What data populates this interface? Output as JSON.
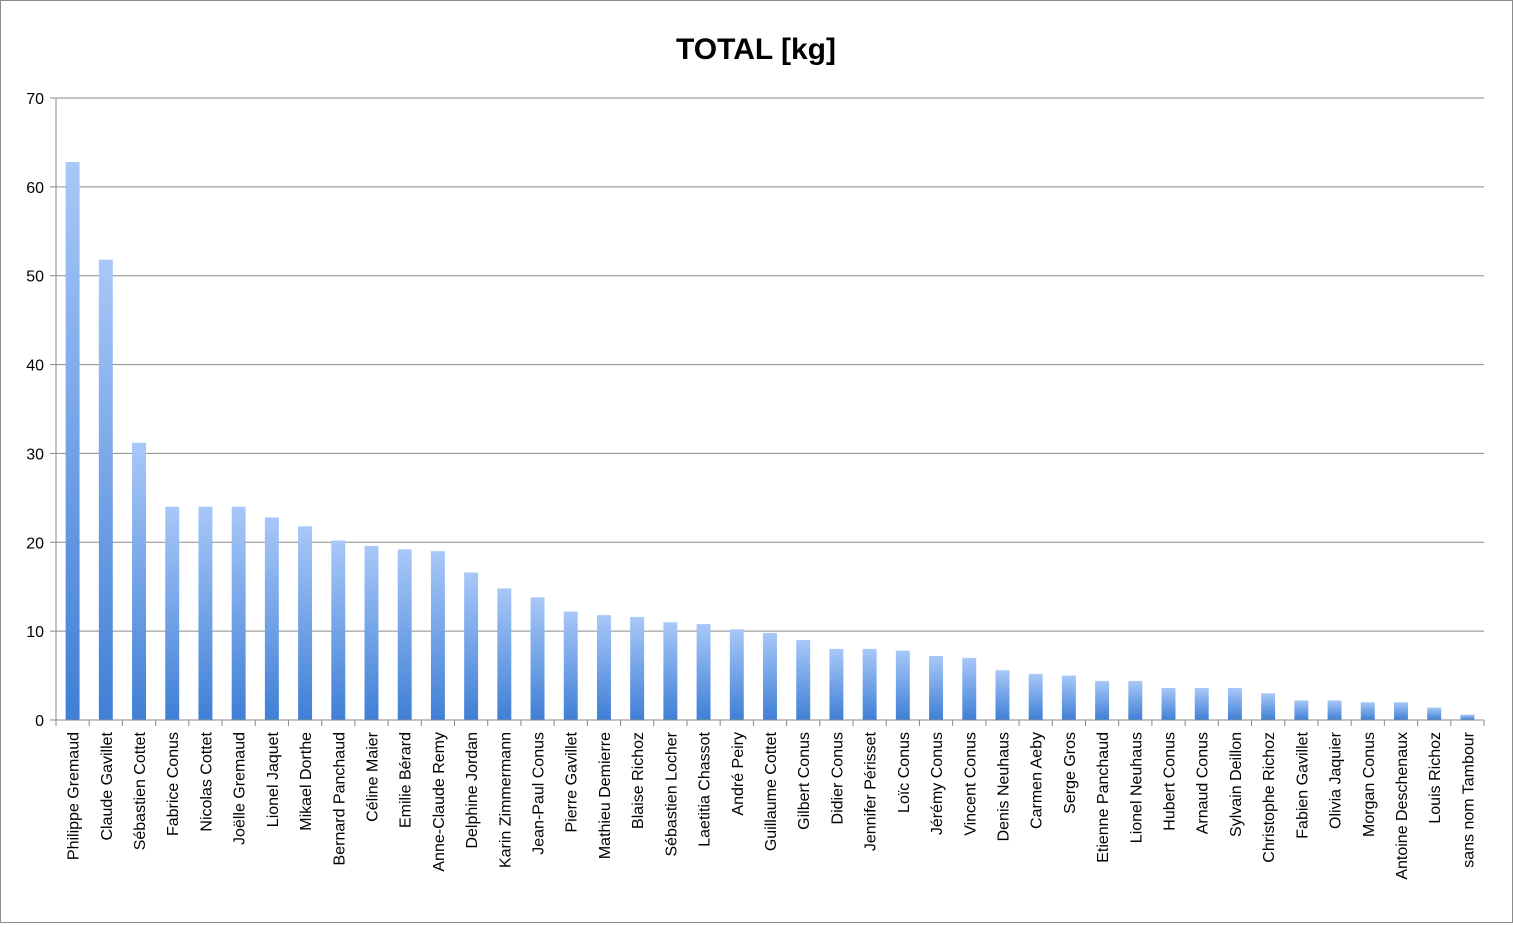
{
  "chart_data": {
    "type": "bar",
    "title": "TOTAL [kg]",
    "xlabel": "",
    "ylabel": "",
    "ylim": [
      0,
      70
    ],
    "yticks": [
      0,
      10,
      20,
      30,
      40,
      50,
      60,
      70
    ],
    "grid": true,
    "legend": "none",
    "bar_color_top": "#a8c8f8",
    "bar_color_bottom": "#3f7fd6",
    "categories": [
      "Philippe Gremaud",
      "Claude Gavillet",
      "Sébastien Cottet",
      "Fabrice Conus",
      "Nicolas Cottet",
      "Joëlle Gremaud",
      "Lionel Jaquet",
      "Mikael Dorthe",
      "Bernard Panchaud",
      "Céline Maier",
      "Emilie Bérard",
      "Anne-Claude Remy",
      "Delphine Jordan",
      "Karin Zimmermann",
      "Jean-Paul Conus",
      "Pierre Gavillet",
      "Mathieu Demierre",
      "Blaise Richoz",
      "Sébastien Locher",
      "Laetitia Chassot",
      "André Peiry",
      "Guillaume Cottet",
      "Gilbert Conus",
      "Didier Conus",
      "Jennifer Périsset",
      "Loïc Conus",
      "Jérémy Conus",
      "Vincent Conus",
      "Denis Neuhaus",
      "Carmen Aeby",
      "Serge Gros",
      "Etienne Panchaud",
      "Lionel Neuhaus",
      "Hubert Conus",
      "Arnaud Conus",
      "Sylvain Deillon",
      "Christophe Richoz",
      "Fabien Gavillet",
      "Olivia Jaquier",
      "Morgan Conus",
      "Antoine Deschenaux",
      "Louis Richoz",
      "sans nom Tambour"
    ],
    "values": [
      62.8,
      51.8,
      31.2,
      24.0,
      24.0,
      24.0,
      22.8,
      21.8,
      20.2,
      19.6,
      19.2,
      19.0,
      16.6,
      14.8,
      13.8,
      12.2,
      11.8,
      11.6,
      11.0,
      10.8,
      10.2,
      9.8,
      9.0,
      8.0,
      8.0,
      7.8,
      7.2,
      7.0,
      5.6,
      5.2,
      5.0,
      4.4,
      4.4,
      3.6,
      3.6,
      3.6,
      3.0,
      2.2,
      2.2,
      2.0,
      2.0,
      1.4,
      0.6
    ]
  }
}
